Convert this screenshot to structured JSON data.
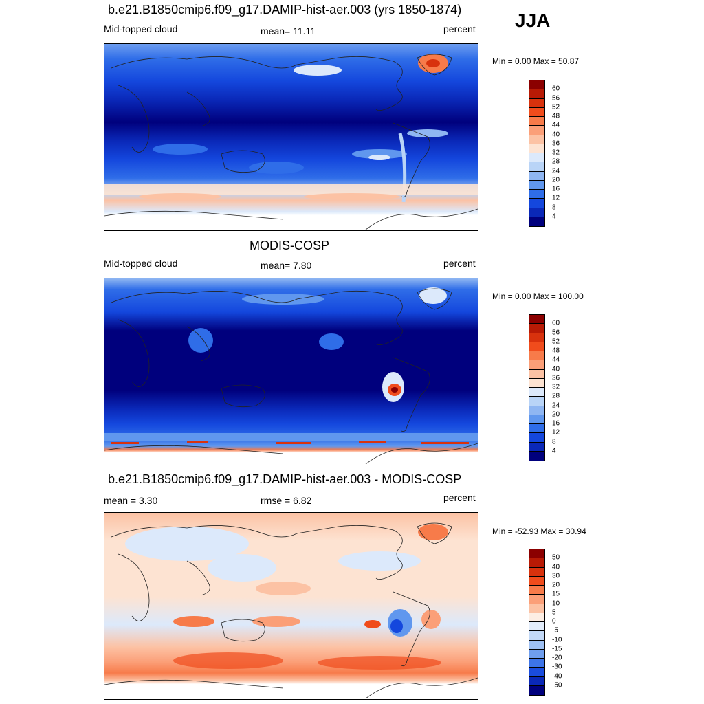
{
  "season": "JJA",
  "panels": [
    {
      "title": "b.e21.B1850cmip6.f09_g17.DAMIP-hist-aer.003 (yrs 1850-1874)",
      "left_label": "Mid-topped cloud",
      "center_label": "mean=  11.11",
      "right_label": "percent",
      "minmax": "Min =   0.00 Max =  50.87",
      "colorbar": {
        "labels": [
          "60",
          "56",
          "52",
          "48",
          "44",
          "40",
          "36",
          "32",
          "28",
          "24",
          "20",
          "16",
          "12",
          "8",
          "4"
        ],
        "colors": [
          "#8b0000",
          "#b81a05",
          "#d8320d",
          "#f04c1c",
          "#f77b4a",
          "#fb9f78",
          "#fcc2a4",
          "#fde3d2",
          "#dce9fb",
          "#b9d4f7",
          "#8fb6f2",
          "#6097ee",
          "#2f6de8",
          "#1447dd",
          "#0a28b8",
          "#00007d"
        ]
      }
    },
    {
      "title": "MODIS-COSP",
      "left_label": "Mid-topped cloud",
      "center_label": "mean=   7.80",
      "right_label": "percent",
      "minmax": "Min =   0.00 Max = 100.00",
      "colorbar": {
        "labels": [
          "60",
          "56",
          "52",
          "48",
          "44",
          "40",
          "36",
          "32",
          "28",
          "24",
          "20",
          "16",
          "12",
          "8",
          "4"
        ],
        "colors": [
          "#8b0000",
          "#b81a05",
          "#d8320d",
          "#f04c1c",
          "#f77b4a",
          "#fb9f78",
          "#fcc2a4",
          "#fde3d2",
          "#dce9fb",
          "#b9d4f7",
          "#8fb6f2",
          "#6097ee",
          "#2f6de8",
          "#1447dd",
          "#0a28b8",
          "#00007d"
        ]
      }
    },
    {
      "title": "b.e21.B1850cmip6.f09_g17.DAMIP-hist-aer.003 - MODIS-COSP",
      "left_label": "mean =   3.30",
      "center_label": "rmse =   6.82",
      "right_label": "percent",
      "minmax": "Min = -52.93 Max =  30.94",
      "colorbar": {
        "labels": [
          "50",
          "40",
          "30",
          "20",
          "15",
          "10",
          "5",
          "0",
          "-5",
          "-10",
          "-15",
          "-20",
          "-30",
          "-40",
          "-50"
        ],
        "colors": [
          "#8b0000",
          "#b81a05",
          "#d8320d",
          "#f04c1c",
          "#f77b4a",
          "#fb9f78",
          "#fcc2a4",
          "#fdeee4",
          "#e3edfb",
          "#c3d9f7",
          "#9ec0f3",
          "#6f9eee",
          "#3d74e8",
          "#1a4cde",
          "#0a28b8",
          "#00007d"
        ]
      }
    }
  ]
}
